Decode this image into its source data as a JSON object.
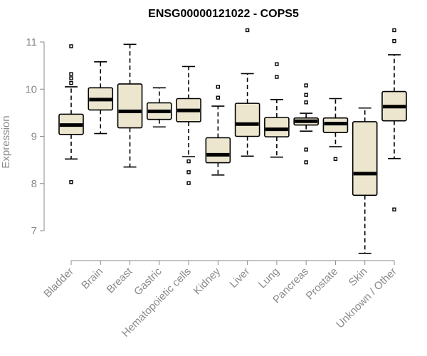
{
  "chart_data": {
    "type": "boxplot",
    "title": "ENSG00000121022 - COPS5",
    "xlabel": "",
    "ylabel": "Expression",
    "ylim": [
      6.5,
      11.2
    ],
    "yticks": [
      7,
      8,
      9,
      10,
      11
    ],
    "categories": [
      "Bladder",
      "Brain",
      "Breast",
      "Gastric",
      "Hematopoietic cells",
      "Kidney",
      "Liver",
      "Lung",
      "Pancreas",
      "Prostate",
      "Skin",
      "Unknown / Other"
    ],
    "boxes": [
      {
        "min": 8.52,
        "q1": 9.04,
        "median": 9.24,
        "q3": 9.47,
        "max": 10.05,
        "outliers": [
          8.03,
          10.13,
          10.23,
          10.32,
          10.91
        ]
      },
      {
        "min": 9.06,
        "q1": 9.56,
        "median": 9.78,
        "q3": 10.03,
        "max": 10.58,
        "outliers": []
      },
      {
        "min": 8.35,
        "q1": 9.18,
        "median": 9.53,
        "q3": 10.11,
        "max": 10.95,
        "outliers": []
      },
      {
        "min": 9.2,
        "q1": 9.36,
        "median": 9.53,
        "q3": 9.71,
        "max": 10.03,
        "outliers": []
      },
      {
        "min": 8.57,
        "q1": 9.31,
        "median": 9.55,
        "q3": 9.8,
        "max": 10.48,
        "outliers": [
          8.01,
          8.24,
          8.47
        ]
      },
      {
        "min": 8.18,
        "q1": 8.44,
        "median": 8.61,
        "q3": 8.97,
        "max": 9.64,
        "outliers": [
          9.82,
          10.05
        ]
      },
      {
        "min": 8.58,
        "q1": 9.0,
        "median": 9.26,
        "q3": 9.7,
        "max": 10.33,
        "outliers": [
          11.25
        ]
      },
      {
        "min": 8.56,
        "q1": 8.99,
        "median": 9.15,
        "q3": 9.4,
        "max": 9.78,
        "outliers": [
          10.26,
          10.53
        ]
      },
      {
        "min": 9.11,
        "q1": 9.24,
        "median": 9.32,
        "q3": 9.39,
        "max": 9.49,
        "outliers": [
          8.45,
          8.72,
          9.72,
          9.88,
          10.08
        ]
      },
      {
        "min": 8.78,
        "q1": 9.08,
        "median": 9.27,
        "q3": 9.39,
        "max": 9.8,
        "outliers": [
          8.52
        ]
      },
      {
        "min": 6.52,
        "q1": 7.75,
        "median": 8.21,
        "q3": 9.31,
        "max": 9.6,
        "outliers": []
      },
      {
        "min": 8.53,
        "q1": 9.33,
        "median": 9.63,
        "q3": 9.95,
        "max": 10.73,
        "outliers": [
          7.45,
          11.02,
          11.25
        ]
      }
    ]
  }
}
